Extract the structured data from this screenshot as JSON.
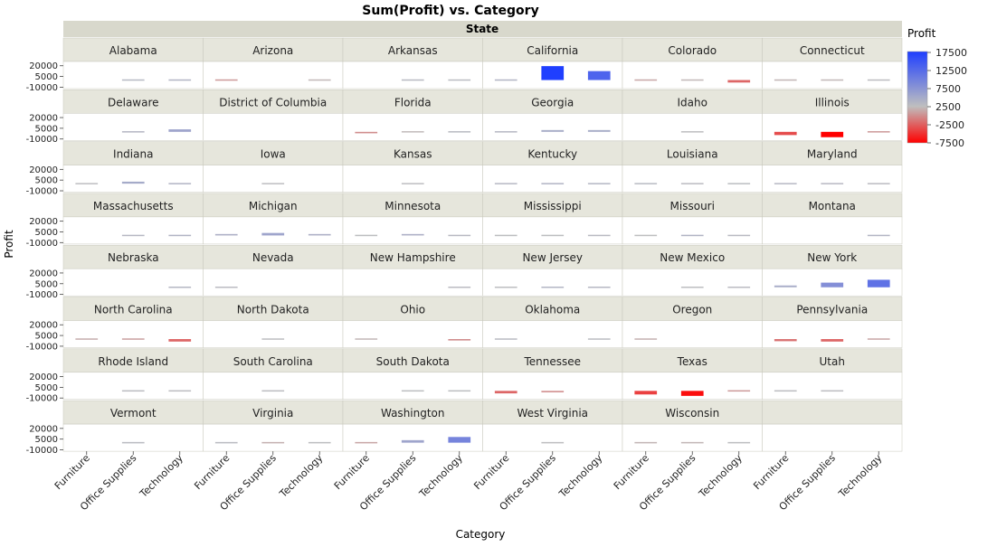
{
  "chart_data": {
    "type": "bar",
    "title": "Sum(Profit) vs. Category",
    "facet_header": "State",
    "xlabel": "Category",
    "ylabel": "Profit",
    "categories": [
      "Furniture",
      "Office Supplies",
      "Technology"
    ],
    "y_ticks": [
      20000,
      5000,
      -10000
    ],
    "ylim": [
      -12000,
      26000
    ],
    "legend": {
      "title": "Profit",
      "position": "right",
      "ticks": [
        17500,
        12500,
        7500,
        2500,
        -2500,
        -7500
      ],
      "min": -7500,
      "max": 17500,
      "colors": {
        "low": "#ff0000",
        "mid": "#bfbfbf",
        "high": "#1f3fff"
      }
    },
    "panels": [
      {
        "state": "Alabama",
        "values": [
          null,
          1000,
          1500
        ]
      },
      {
        "state": "Arizona",
        "values": [
          -1500,
          null,
          -300
        ]
      },
      {
        "state": "Arkansas",
        "values": [
          null,
          900,
          500
        ]
      },
      {
        "state": "California",
        "values": [
          1500,
          19500,
          12500
        ]
      },
      {
        "state": "Colorado",
        "values": [
          -1000,
          -300,
          -3500
        ]
      },
      {
        "state": "Connecticut",
        "values": [
          -400,
          -300,
          400
        ]
      },
      {
        "state": "Delaware",
        "values": [
          null,
          1200,
          3500
        ]
      },
      {
        "state": "District of Columbia",
        "values": [
          null,
          null,
          null
        ]
      },
      {
        "state": "Florida",
        "values": [
          -2000,
          -200,
          700
        ]
      },
      {
        "state": "Georgia",
        "values": [
          1000,
          2500,
          2500
        ]
      },
      {
        "state": "Idaho",
        "values": [
          null,
          200,
          null
        ]
      },
      {
        "state": "Illinois",
        "values": [
          -4500,
          -7500,
          -1500
        ]
      },
      {
        "state": "Indiana",
        "values": [
          300,
          2800,
          1500
        ]
      },
      {
        "state": "Iowa",
        "values": [
          null,
          300,
          null
        ]
      },
      {
        "state": "Kansas",
        "values": [
          null,
          300,
          null
        ]
      },
      {
        "state": "Kentucky",
        "values": [
          1000,
          1500,
          1200
        ]
      },
      {
        "state": "Louisiana",
        "values": [
          800,
          500,
          400
        ]
      },
      {
        "state": "Maryland",
        "values": [
          1000,
          900,
          500
        ]
      },
      {
        "state": "Massachusetts",
        "values": [
          null,
          1000,
          1500
        ]
      },
      {
        "state": "Michigan",
        "values": [
          2000,
          3500,
          2000
        ]
      },
      {
        "state": "Minnesota",
        "values": [
          300,
          2000,
          800
        ]
      },
      {
        "state": "Mississippi",
        "values": [
          300,
          300,
          700
        ]
      },
      {
        "state": "Missouri",
        "values": [
          200,
          1500,
          700
        ]
      },
      {
        "state": "Montana",
        "values": [
          null,
          null,
          1300
        ]
      },
      {
        "state": "Nebraska",
        "values": [
          null,
          null,
          1200
        ]
      },
      {
        "state": "Nevada",
        "values": [
          600,
          null,
          null
        ]
      },
      {
        "state": "New Hampshire",
        "values": [
          null,
          null,
          500
        ]
      },
      {
        "state": "New Jersey",
        "values": [
          300,
          1300,
          1100
        ]
      },
      {
        "state": "New Mexico",
        "values": [
          null,
          300,
          600
        ]
      },
      {
        "state": "New York",
        "values": [
          2500,
          6500,
          10500
        ]
      },
      {
        "state": "North Carolina",
        "values": [
          -700,
          -1200,
          -3500
        ]
      },
      {
        "state": "North Dakota",
        "values": [
          null,
          200,
          null
        ]
      },
      {
        "state": "Ohio",
        "values": [
          -300,
          null,
          -2000
        ]
      },
      {
        "state": "Oklahoma",
        "values": [
          700,
          null,
          600
        ]
      },
      {
        "state": "Oregon",
        "values": [
          -600,
          null,
          null
        ]
      },
      {
        "state": "Pennsylvania",
        "values": [
          -3000,
          -3500,
          -1000
        ]
      },
      {
        "state": "Rhode Island",
        "values": [
          null,
          600,
          300
        ]
      },
      {
        "state": "South Carolina",
        "values": [
          null,
          400,
          null
        ]
      },
      {
        "state": "South Dakota",
        "values": [
          null,
          200,
          200
        ]
      },
      {
        "state": "Tennessee",
        "values": [
          -3500,
          -2000,
          null
        ]
      },
      {
        "state": "Texas",
        "values": [
          -5000,
          -7000,
          -1500
        ]
      },
      {
        "state": "Utah",
        "values": [
          400,
          300,
          null
        ]
      },
      {
        "state": "Vermont",
        "values": [
          null,
          500,
          null
        ]
      },
      {
        "state": "Virginia",
        "values": [
          600,
          -600,
          300
        ]
      },
      {
        "state": "Washington",
        "values": [
          -1000,
          3500,
          8000
        ]
      },
      {
        "state": "West Virginia",
        "values": [
          null,
          200,
          null
        ]
      },
      {
        "state": "Wisconsin",
        "values": [
          -400,
          -300,
          300
        ]
      },
      {
        "state": "",
        "values": [
          null,
          null,
          null
        ]
      }
    ]
  }
}
